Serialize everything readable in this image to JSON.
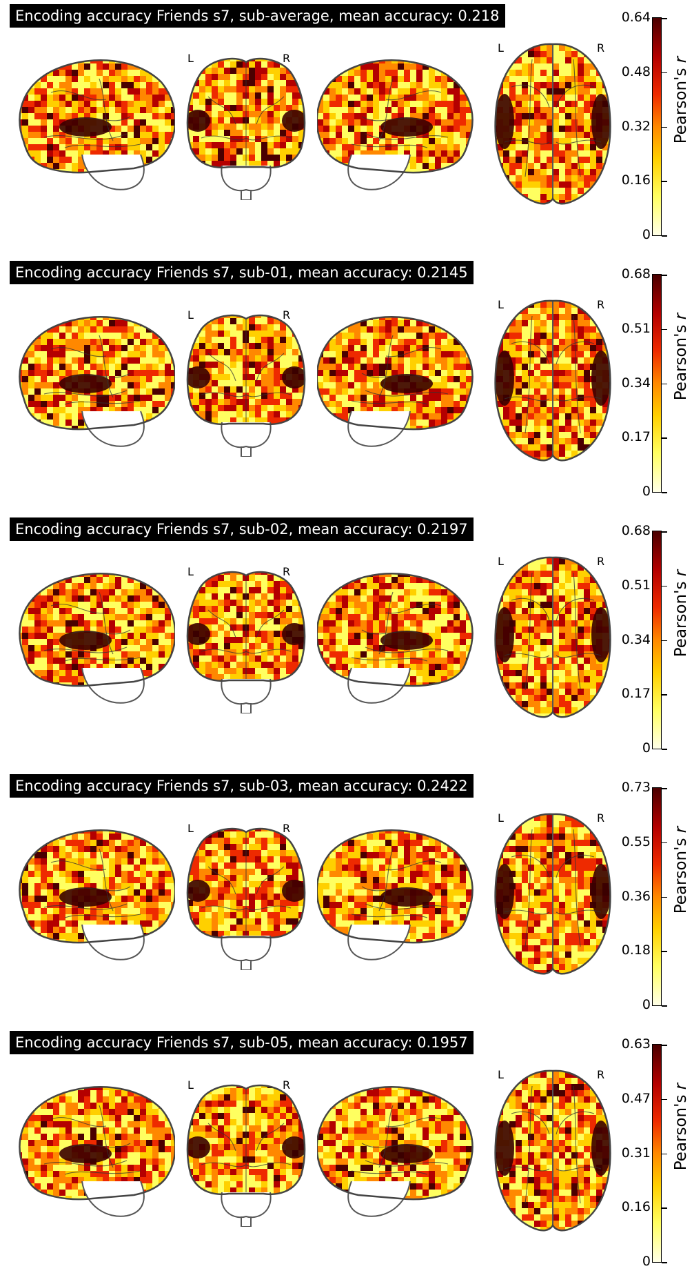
{
  "panels": [
    {
      "title": "Encoding accuracy Friends s7, sub-average, mean accuracy: 0.218",
      "ticks": [
        "0",
        "0.16",
        "0.32",
        "0.48",
        "0.64"
      ],
      "max": 0.64,
      "colorbar_label": "Pearson's",
      "colorbar_var": "r"
    },
    {
      "title": "Encoding accuracy Friends s7, sub-01, mean accuracy: 0.2145",
      "ticks": [
        "0",
        "0.17",
        "0.34",
        "0.51",
        "0.68"
      ],
      "max": 0.68,
      "colorbar_label": "Pearson's",
      "colorbar_var": "r"
    },
    {
      "title": "Encoding accuracy Friends s7, sub-02, mean accuracy: 0.2197",
      "ticks": [
        "0",
        "0.17",
        "0.34",
        "0.51",
        "0.68"
      ],
      "max": 0.68,
      "colorbar_label": "Pearson's",
      "colorbar_var": "r"
    },
    {
      "title": "Encoding accuracy Friends s7, sub-03, mean accuracy: 0.2422",
      "ticks": [
        "0",
        "0.18",
        "0.36",
        "0.55",
        "0.73"
      ],
      "max": 0.73,
      "colorbar_label": "Pearson's",
      "colorbar_var": "r"
    },
    {
      "title": "Encoding accuracy Friends s7, sub-05, mean accuracy: 0.1957",
      "ticks": [
        "0",
        "0.16",
        "0.31",
        "0.47",
        "0.63"
      ],
      "max": 0.63,
      "colorbar_label": "Pearson's",
      "colorbar_var": "r"
    }
  ],
  "hemisphere_labels": {
    "left": "L",
    "right": "R"
  },
  "colormap": [
    "#ffffe8",
    "#ffff60",
    "#ffd000",
    "#ff8800",
    "#ee2a00",
    "#b40000",
    "#4a0000"
  ]
}
